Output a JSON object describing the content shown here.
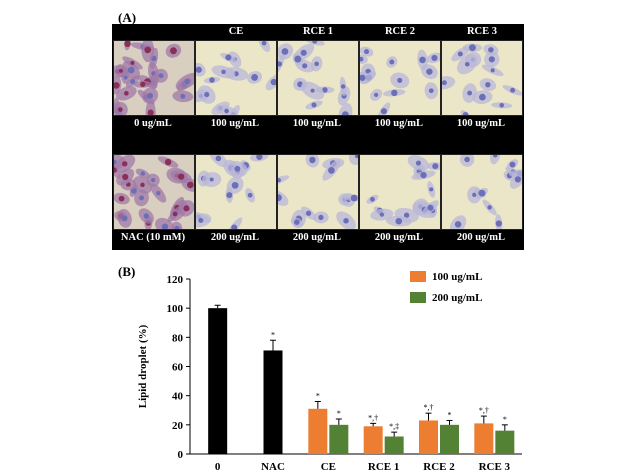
{
  "panel_a": {
    "label": "(A)",
    "column_headers": [
      "",
      "CE",
      "RCE 1",
      "RCE 2",
      "RCE 3"
    ],
    "row1_captions": [
      "0 ug/mL",
      "100 ug/mL",
      "100 ug/mL",
      "100 ug/mL",
      "100 ug/mL"
    ],
    "row2_captions": [
      "NAC (10 mM)",
      "200 ug/mL",
      "200 ug/mL",
      "200 ug/mL",
      "200 ug/mL"
    ]
  },
  "panel_b": {
    "label": "(B)"
  },
  "colors": {
    "control": "#000000",
    "low_dose": "#ed7d31",
    "high_dose": "#548235",
    "stain_dark": "#8a2f5a",
    "stain_light": "#6b6fb8",
    "background_cells": "#ece6c8"
  },
  "chart_data": {
    "type": "bar",
    "ylabel": "Lipid droplet (%)",
    "ylim": [
      0,
      120
    ],
    "yticks": [
      0,
      20,
      40,
      60,
      80,
      100,
      120
    ],
    "categories": [
      "0",
      "NAC",
      "CE",
      "RCE 1",
      "RCE 2",
      "RCE 3"
    ],
    "control_values": [
      {
        "category": "0",
        "value": 100,
        "error": 2,
        "mark": ""
      },
      {
        "category": "NAC",
        "value": 71,
        "error": 7,
        "mark": "*"
      }
    ],
    "series": [
      {
        "name": "100 ug/mL",
        "color": "#ed7d31",
        "values": [
          null,
          null,
          31,
          19,
          23,
          21
        ],
        "errors": [
          null,
          null,
          5,
          2,
          5,
          5
        ],
        "marks": [
          "",
          "",
          "*",
          "*,†",
          "*,†",
          "*,†"
        ]
      },
      {
        "name": "200 ug/mL",
        "color": "#548235",
        "values": [
          null,
          null,
          20,
          12,
          20,
          16
        ],
        "errors": [
          null,
          null,
          4,
          3,
          3,
          4
        ],
        "marks": [
          "",
          "",
          "*",
          "*,‡",
          "*",
          "*"
        ]
      }
    ],
    "legend_position": "top-right",
    "grid": false
  }
}
